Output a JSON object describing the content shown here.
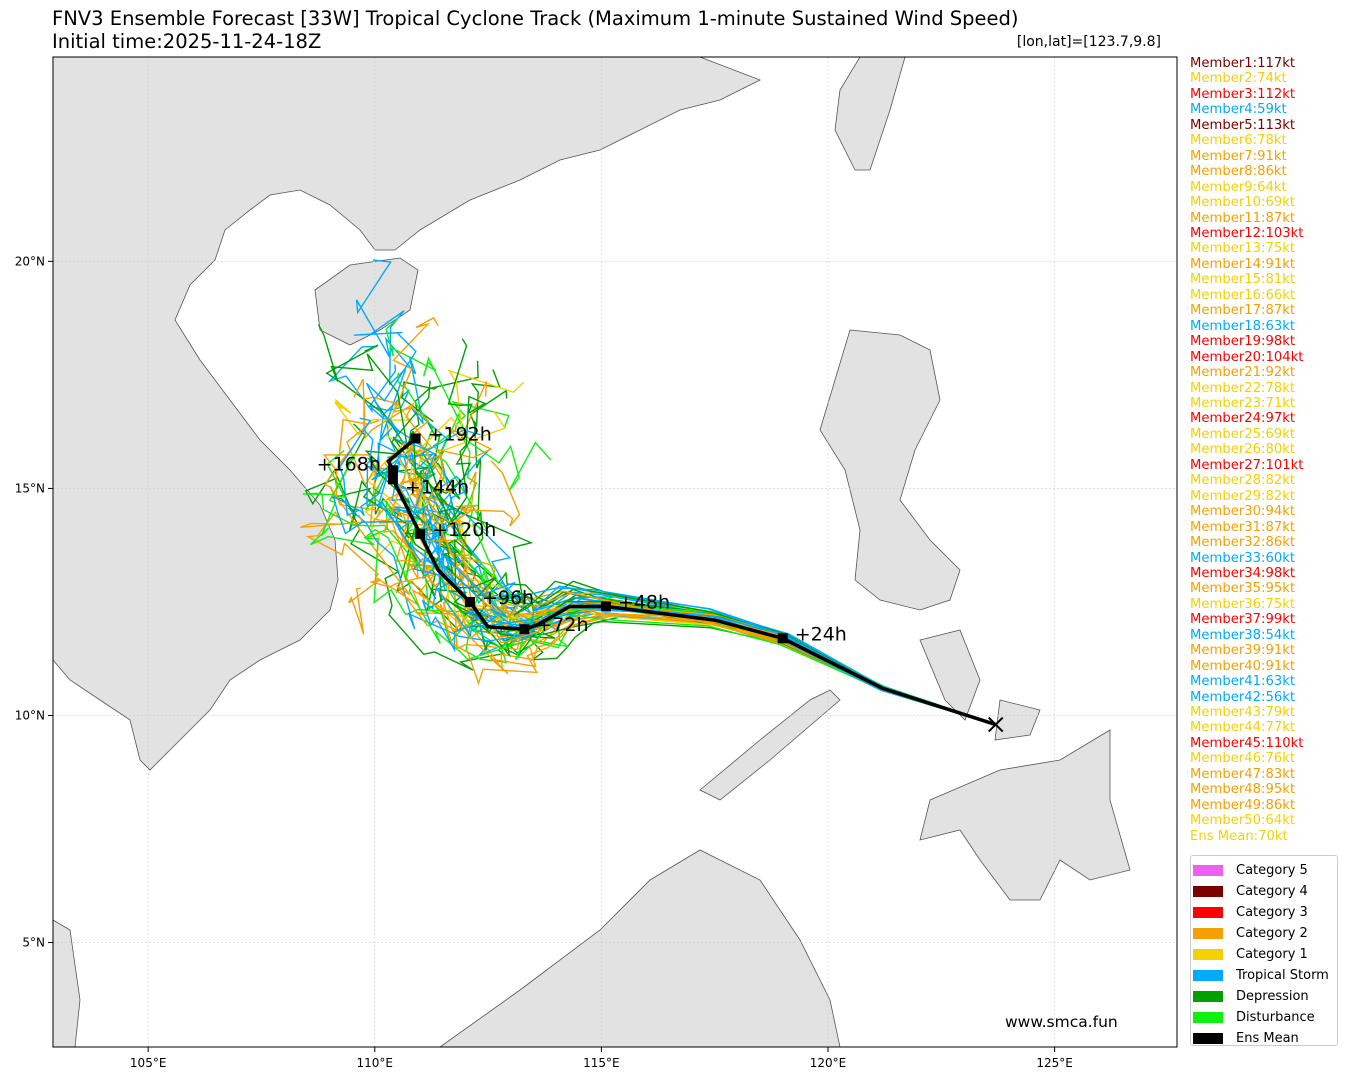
{
  "title": "FNV3 Ensemble Forecast [33W] Tropical Cyclone Track (Maximum 1-minute Sustained Wind Speed)",
  "subtitle": "Initial time:2025-11-24-18Z",
  "lonlat": "[lon,lat]=[123.7,9.8]",
  "website": "www.smca.fun",
  "members": [
    {
      "t": "Member1:117kt",
      "c": "#7a0000"
    },
    {
      "t": "Member2:74kt",
      "c": "#f5d000"
    },
    {
      "t": "Member3:112kt",
      "c": "#ff0000"
    },
    {
      "t": "Member4:59kt",
      "c": "#00aaff"
    },
    {
      "t": "Member5:113kt",
      "c": "#7a0000"
    },
    {
      "t": "Member6:78kt",
      "c": "#f5d000"
    },
    {
      "t": "Member7:91kt",
      "c": "#f5a000"
    },
    {
      "t": "Member8:86kt",
      "c": "#f5a000"
    },
    {
      "t": "Member9:64kt",
      "c": "#f5d000"
    },
    {
      "t": "Member10:69kt",
      "c": "#f5d000"
    },
    {
      "t": "Member11:87kt",
      "c": "#f5a000"
    },
    {
      "t": "Member12:103kt",
      "c": "#ff0000"
    },
    {
      "t": "Member13:75kt",
      "c": "#f5d000"
    },
    {
      "t": "Member14:91kt",
      "c": "#f5a000"
    },
    {
      "t": "Member15:81kt",
      "c": "#f5d000"
    },
    {
      "t": "Member16:66kt",
      "c": "#f5d000"
    },
    {
      "t": "Member17:87kt",
      "c": "#f5a000"
    },
    {
      "t": "Member18:63kt",
      "c": "#00aaff"
    },
    {
      "t": "Member19:98kt",
      "c": "#ff0000"
    },
    {
      "t": "Member20:104kt",
      "c": "#ff0000"
    },
    {
      "t": "Member21:92kt",
      "c": "#f5a000"
    },
    {
      "t": "Member22:78kt",
      "c": "#f5d000"
    },
    {
      "t": "Member23:71kt",
      "c": "#f5d000"
    },
    {
      "t": "Member24:97kt",
      "c": "#ff0000"
    },
    {
      "t": "Member25:69kt",
      "c": "#f5d000"
    },
    {
      "t": "Member26:80kt",
      "c": "#f5d000"
    },
    {
      "t": "Member27:101kt",
      "c": "#ff0000"
    },
    {
      "t": "Member28:82kt",
      "c": "#f5d000"
    },
    {
      "t": "Member29:82kt",
      "c": "#f5d000"
    },
    {
      "t": "Member30:94kt",
      "c": "#f5a000"
    },
    {
      "t": "Member31:87kt",
      "c": "#f5a000"
    },
    {
      "t": "Member32:86kt",
      "c": "#f5a000"
    },
    {
      "t": "Member33:60kt",
      "c": "#00aaff"
    },
    {
      "t": "Member34:98kt",
      "c": "#ff0000"
    },
    {
      "t": "Member35:95kt",
      "c": "#f5a000"
    },
    {
      "t": "Member36:75kt",
      "c": "#f5d000"
    },
    {
      "t": "Member37:99kt",
      "c": "#ff0000"
    },
    {
      "t": "Member38:54kt",
      "c": "#00aaff"
    },
    {
      "t": "Member39:91kt",
      "c": "#f5a000"
    },
    {
      "t": "Member40:91kt",
      "c": "#f5a000"
    },
    {
      "t": "Member41:63kt",
      "c": "#00aaff"
    },
    {
      "t": "Member42:56kt",
      "c": "#00aaff"
    },
    {
      "t": "Member43:79kt",
      "c": "#f5d000"
    },
    {
      "t": "Member44:77kt",
      "c": "#f5d000"
    },
    {
      "t": "Member45:110kt",
      "c": "#ff0000"
    },
    {
      "t": "Member46:76kt",
      "c": "#f5d000"
    },
    {
      "t": "Member47:83kt",
      "c": "#f5a000"
    },
    {
      "t": "Member48:95kt",
      "c": "#f5a000"
    },
    {
      "t": "Member49:86kt",
      "c": "#f5a000"
    },
    {
      "t": "Member50:64kt",
      "c": "#f5d000"
    },
    {
      "t": "Ens Mean:70kt",
      "c": "#f5d000"
    }
  ],
  "legend": [
    {
      "label": "Category 5",
      "color": "#f060f0"
    },
    {
      "label": "Category 4",
      "color": "#7a0000"
    },
    {
      "label": "Category 3",
      "color": "#ff0000"
    },
    {
      "label": "Category 2",
      "color": "#f5a000"
    },
    {
      "label": "Category 1",
      "color": "#f5d000"
    },
    {
      "label": "Tropical Storm",
      "color": "#00aaff"
    },
    {
      "label": "Depression",
      "color": "#00a000"
    },
    {
      "label": "Disturbance",
      "color": "#10f010"
    },
    {
      "label": "Ens Mean",
      "color": "#000000"
    }
  ],
  "chart_data": {
    "type": "line",
    "title": "FNV3 Ensemble Forecast [33W] Tropical Cyclone Track (Maximum 1-minute Sustained Wind Speed)",
    "xlim": [
      102.9,
      127.7
    ],
    "ylim": [
      2.7,
      24.5
    ],
    "xticks": [
      {
        "v": 105,
        "l": "105°E"
      },
      {
        "v": 110,
        "l": "110°E"
      },
      {
        "v": 115,
        "l": "115°E"
      },
      {
        "v": 120,
        "l": "120°E"
      },
      {
        "v": 125,
        "l": "125°E"
      }
    ],
    "yticks": [
      {
        "v": 5,
        "l": "5°N"
      },
      {
        "v": 10,
        "l": "10°N"
      },
      {
        "v": 15,
        "l": "15°N"
      },
      {
        "v": 20,
        "l": "20°N"
      }
    ],
    "ens_mean_track": [
      [
        123.7,
        9.8
      ],
      [
        121.2,
        10.6
      ],
      [
        119.0,
        11.7
      ],
      [
        117.5,
        12.1
      ],
      [
        115.1,
        12.4
      ],
      [
        114.3,
        12.4
      ],
      [
        113.6,
        12.0
      ],
      [
        113.3,
        11.9
      ],
      [
        112.5,
        11.95
      ],
      [
        112.1,
        12.5
      ],
      [
        111.4,
        13.2
      ],
      [
        111.0,
        14.0
      ],
      [
        110.7,
        14.6
      ],
      [
        110.4,
        15.2
      ],
      [
        110.4,
        15.4
      ],
      [
        110.3,
        15.6
      ],
      [
        110.9,
        16.1
      ]
    ],
    "labels": [
      {
        "lon": 119.0,
        "lat": 11.7,
        "t": "+24h"
      },
      {
        "lon": 115.1,
        "lat": 12.4,
        "t": "+48h"
      },
      {
        "lon": 113.3,
        "lat": 11.9,
        "t": "+72h"
      },
      {
        "lon": 112.1,
        "lat": 12.5,
        "t": "+96h"
      },
      {
        "lon": 111.0,
        "lat": 14.0,
        "t": "+120h"
      },
      {
        "lon": 110.4,
        "lat": 15.2,
        "t": "+144h"
      },
      {
        "lon": 110.4,
        "lat": 15.4,
        "t": "+168h"
      },
      {
        "lon": 110.9,
        "lat": 16.1,
        "t": "+192h"
      }
    ]
  }
}
